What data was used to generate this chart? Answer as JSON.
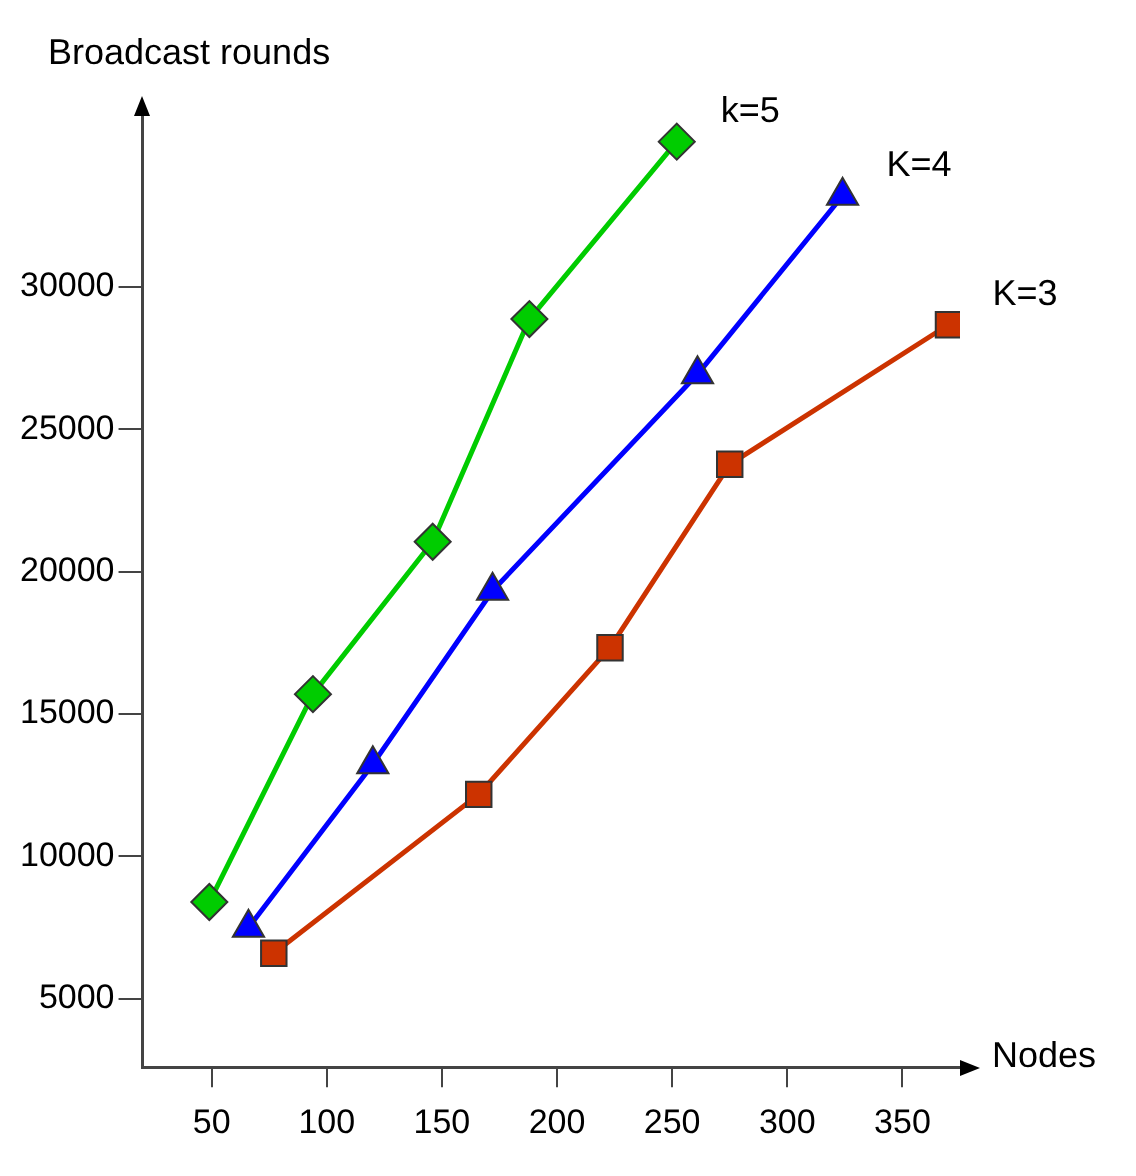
{
  "chart_data": {
    "type": "line",
    "xlabel": "Nodes",
    "ylabel": "Broadcast rounds",
    "xlim": [
      20,
      375
    ],
    "xticks": [
      50,
      100,
      150,
      200,
      250,
      300,
      350
    ],
    "ylim": [
      2600,
      36000
    ],
    "yticks": [
      5000,
      10000,
      15000,
      20000,
      25000,
      30000
    ],
    "grid": false,
    "legend": false,
    "line_style": "solid",
    "series": [
      {
        "name": "k=5",
        "color": "#00cc00",
        "marker": "diamond",
        "x": [
          49,
          94,
          146,
          188,
          252
        ],
        "values": [
          8400,
          15700,
          21050,
          28870,
          35100
        ]
      },
      {
        "name": "K=4",
        "color": "#0000ff",
        "marker": "triangle",
        "x": [
          66,
          120,
          172,
          261,
          324
        ],
        "values": [
          7500,
          13240,
          19330,
          26930,
          33200
        ]
      },
      {
        "name": "K=3",
        "color": "#cc3300",
        "marker": "square",
        "x": [
          77,
          166,
          223,
          275,
          370
        ],
        "values": [
          6600,
          12180,
          17330,
          23770,
          28670
        ]
      }
    ]
  }
}
